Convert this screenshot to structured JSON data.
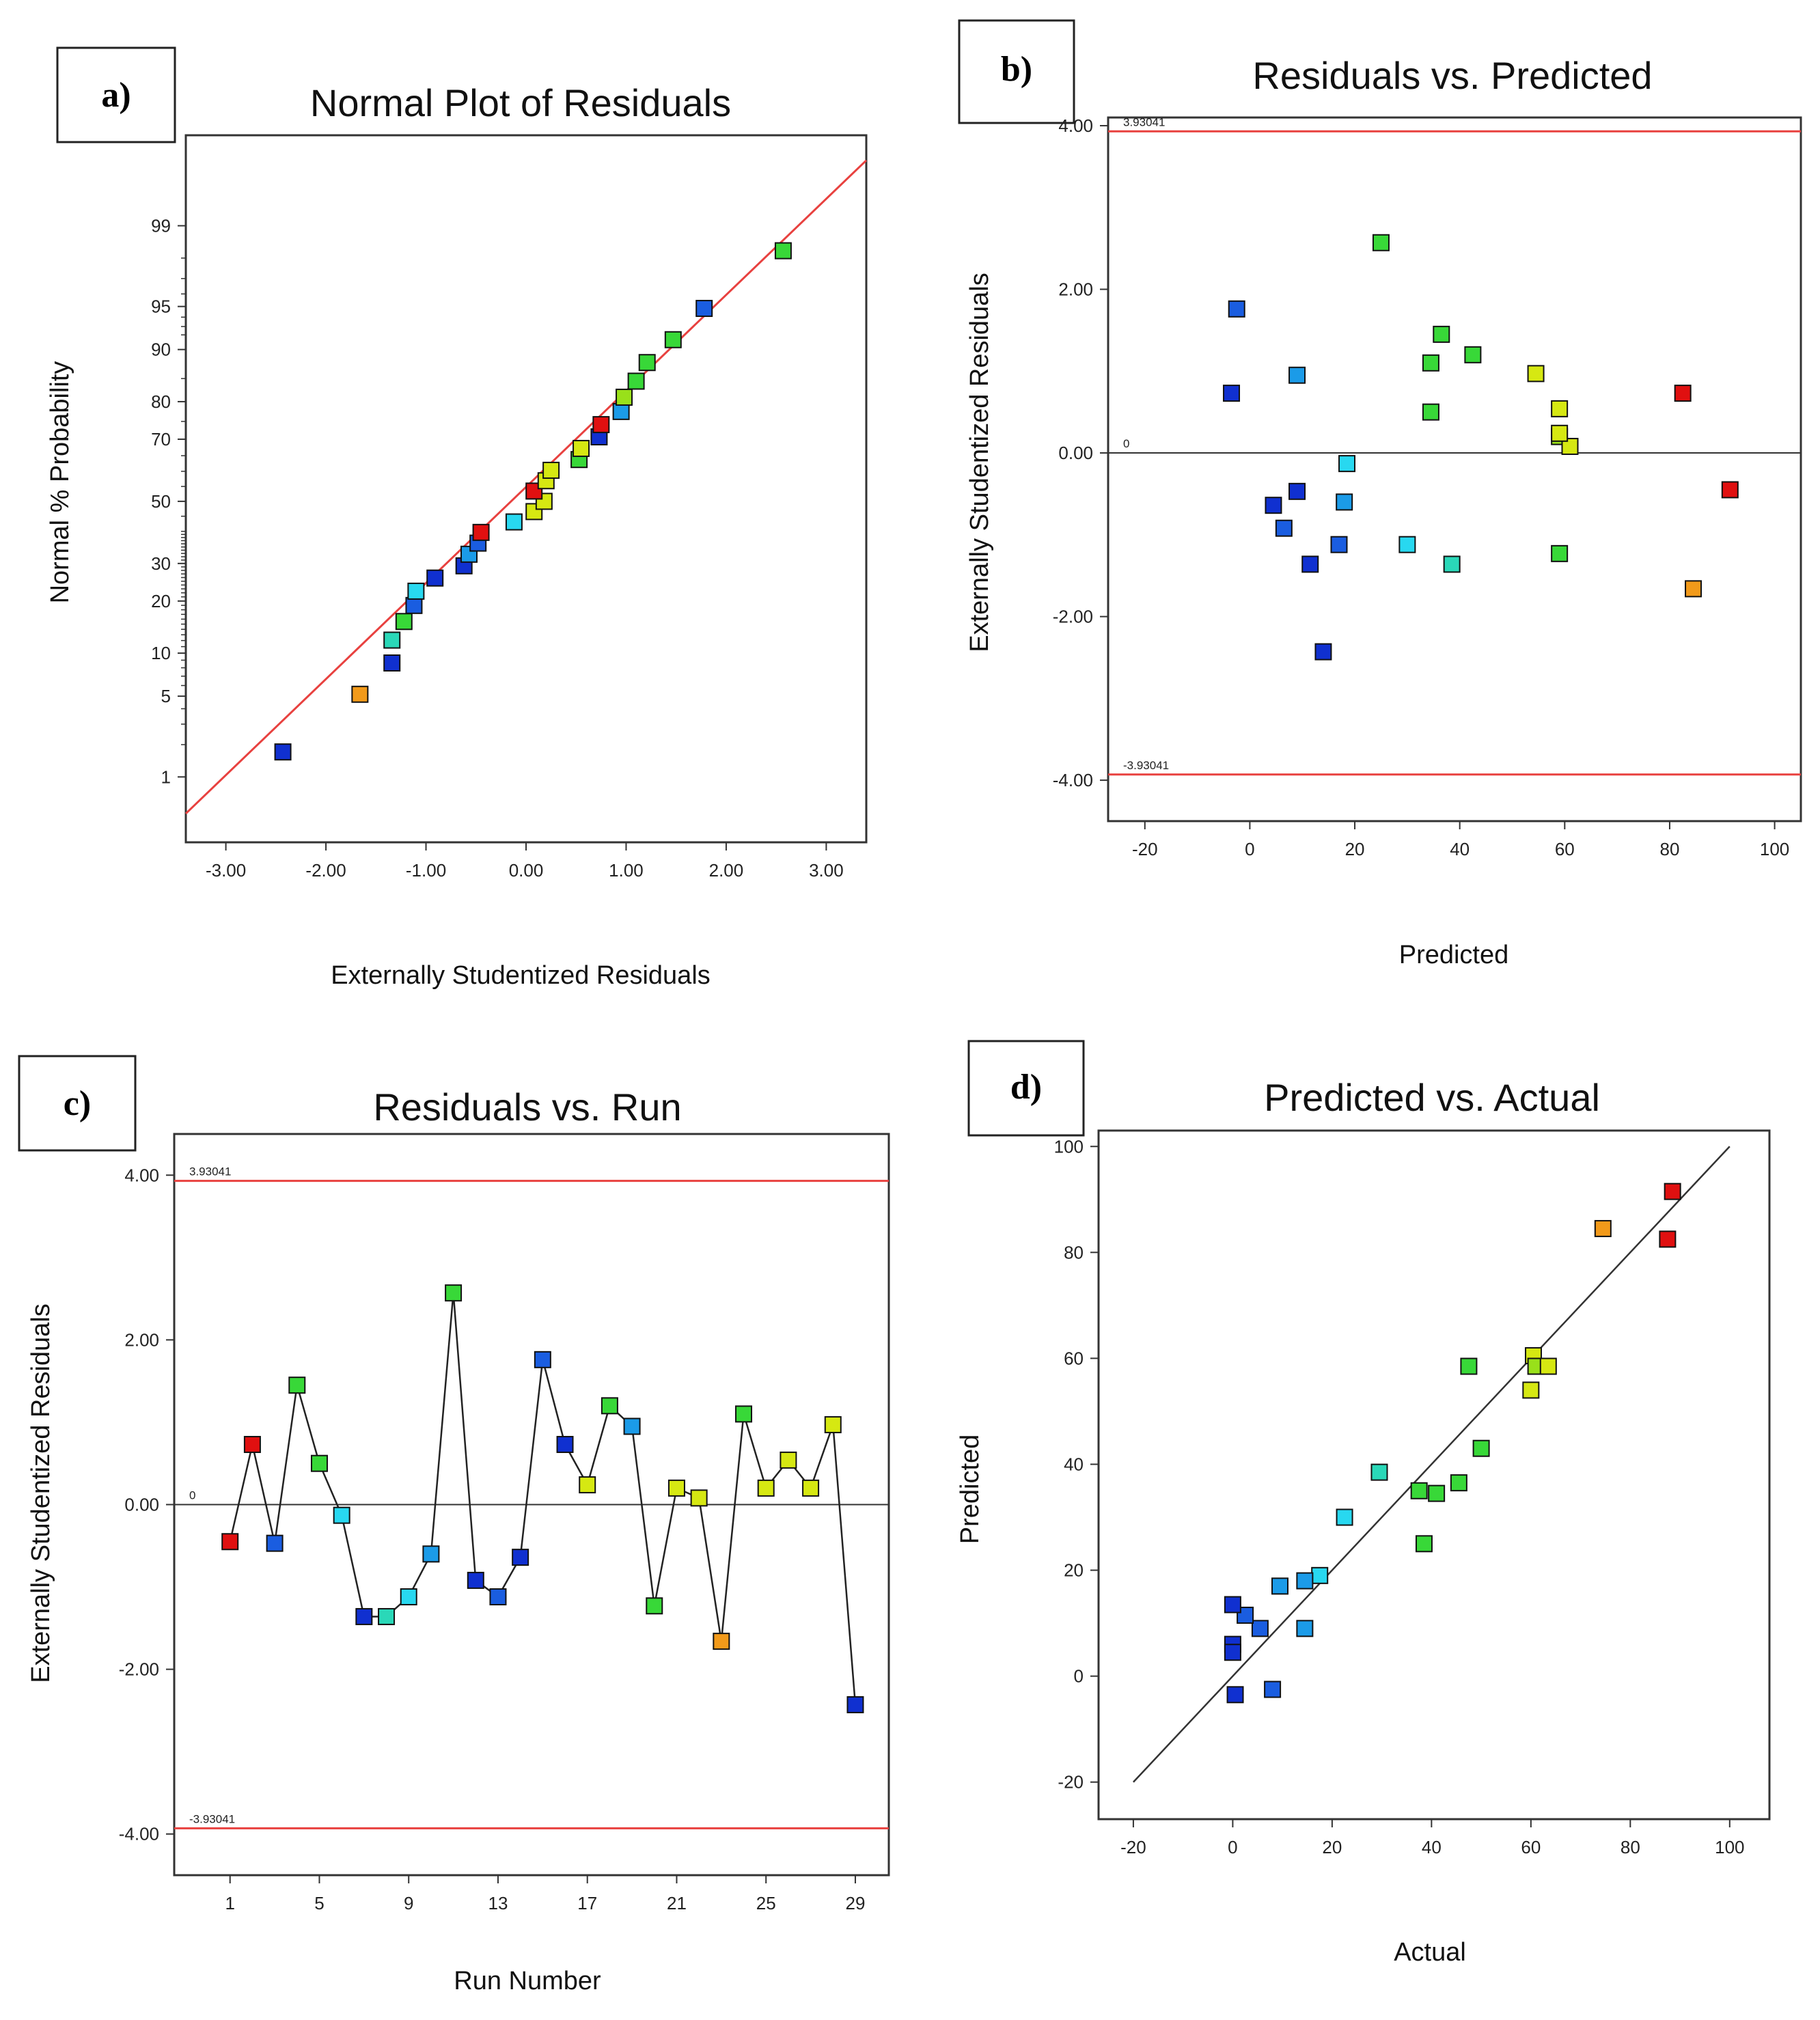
{
  "figure": {
    "colors": {
      "frame": "#333333",
      "ref_line": "#e8413f",
      "fit_line": "#333333",
      "point_red": "#e01010",
      "point_orange": "#f29a1a",
      "point_yellow": "#d6e812",
      "point_lightgreen": "#99e01a",
      "point_green": "#38d838",
      "point_aqua": "#2ad8b8",
      "point_cyan": "#28d8f0",
      "point_skyblue": "#1b9be8",
      "point_blue": "#1a5de0",
      "point_darkblue": "#1030d0",
      "run_line": "#222222"
    }
  },
  "chart_data": [
    {
      "panel": "a)",
      "type": "scatter",
      "title": "Normal Plot of Residuals",
      "xlabel": "Externally Studentized Residuals",
      "ylabel": "Normal % Probability",
      "xlim": [
        -3.4,
        3.4
      ],
      "ylim": [
        0.2,
        99.9
      ],
      "yscale": "probit",
      "xticks": [
        "-3.00",
        "-2.00",
        "-1.00",
        "0.00",
        "1.00",
        "2.00",
        "3.00"
      ],
      "yticks": [
        "1",
        "5",
        "10",
        "20",
        "30",
        "50",
        "70",
        "80",
        "90",
        "95",
        "99"
      ],
      "fit_line": {
        "x": [
          -3.4,
          3.4
        ],
        "y_percent": [
          0.42,
          99.8
        ]
      },
      "points": [
        {
          "x": -2.43,
          "y": 1.72,
          "c": "darkblue"
        },
        {
          "x": -1.66,
          "y": 5.17,
          "c": "orange"
        },
        {
          "x": -1.34,
          "y": 8.62,
          "c": "darkblue"
        },
        {
          "x": -1.34,
          "y": 12.07,
          "c": "aqua"
        },
        {
          "x": -1.22,
          "y": 15.52,
          "c": "green"
        },
        {
          "x": -1.12,
          "y": 18.97,
          "c": "blue"
        },
        {
          "x": -1.1,
          "y": 22.41,
          "c": "cyan"
        },
        {
          "x": -0.91,
          "y": 25.86,
          "c": "darkblue"
        },
        {
          "x": -0.62,
          "y": 29.31,
          "c": "darkblue"
        },
        {
          "x": -0.57,
          "y": 32.76,
          "c": "skyblue"
        },
        {
          "x": -0.48,
          "y": 36.21,
          "c": "blue"
        },
        {
          "x": -0.45,
          "y": 39.66,
          "c": "red"
        },
        {
          "x": -0.12,
          "y": 43.1,
          "c": "cyan"
        },
        {
          "x": 0.08,
          "y": 46.55,
          "c": "yellow"
        },
        {
          "x": 0.18,
          "y": 50.0,
          "c": "yellow"
        },
        {
          "x": 0.08,
          "y": 53.45,
          "c": "red"
        },
        {
          "x": 0.2,
          "y": 56.9,
          "c": "yellow"
        },
        {
          "x": 0.25,
          "y": 60.34,
          "c": "yellow"
        },
        {
          "x": 0.53,
          "y": 63.79,
          "c": "green"
        },
        {
          "x": 0.55,
          "y": 67.24,
          "c": "yellow"
        },
        {
          "x": 0.73,
          "y": 70.69,
          "c": "darkblue"
        },
        {
          "x": 0.75,
          "y": 74.14,
          "c": "red"
        },
        {
          "x": 0.95,
          "y": 77.59,
          "c": "skyblue"
        },
        {
          "x": 0.98,
          "y": 81.03,
          "c": "lightgreen"
        },
        {
          "x": 1.1,
          "y": 84.48,
          "c": "green"
        },
        {
          "x": 1.21,
          "y": 87.93,
          "c": "green"
        },
        {
          "x": 1.47,
          "y": 91.38,
          "c": "green"
        },
        {
          "x": 1.78,
          "y": 94.83,
          "c": "blue"
        },
        {
          "x": 2.57,
          "y": 98.28,
          "c": "green"
        }
      ]
    },
    {
      "panel": "b)",
      "type": "scatter",
      "title": "Residuals vs. Predicted",
      "xlabel": "Predicted",
      "ylabel": "Externally Studentized Residuals",
      "xlim": [
        -27,
        105
      ],
      "ylim": [
        -4.5,
        4.1
      ],
      "xticks": [
        "-20",
        "0",
        "20",
        "40",
        "60",
        "80",
        "100"
      ],
      "yticks": [
        "-4.00",
        "-2.00",
        "0.00",
        "2.00",
        "4.00"
      ],
      "ref_lines": [
        {
          "y": 3.93041,
          "label": "3.93041",
          "style": "red"
        },
        {
          "y": -3.93041,
          "label": "-3.93041",
          "style": "red"
        },
        {
          "y": 0,
          "label": "0",
          "style": "dark"
        }
      ],
      "points": [
        {
          "x": 91.5,
          "y": -0.45,
          "c": "red"
        },
        {
          "x": 82.5,
          "y": 0.73,
          "c": "red"
        },
        {
          "x": -3.5,
          "y": 0.73,
          "c": "darkblue"
        },
        {
          "x": 36.5,
          "y": 1.45,
          "c": "green"
        },
        {
          "x": 34.5,
          "y": 0.5,
          "c": "green"
        },
        {
          "x": 18.5,
          "y": -0.13,
          "c": "cyan"
        },
        {
          "x": 11.5,
          "y": -1.36,
          "c": "darkblue"
        },
        {
          "x": 38.5,
          "y": -1.36,
          "c": "aqua"
        },
        {
          "x": 30.0,
          "y": -1.12,
          "c": "cyan"
        },
        {
          "x": 18.0,
          "y": -0.6,
          "c": "skyblue"
        },
        {
          "x": 25.0,
          "y": 2.57,
          "c": "green"
        },
        {
          "x": 9.0,
          "y": -0.47,
          "c": "darkblue"
        },
        {
          "x": 17.0,
          "y": -1.12,
          "c": "blue"
        },
        {
          "x": 4.5,
          "y": -0.64,
          "c": "darkblue"
        },
        {
          "x": -2.5,
          "y": 1.76,
          "c": "blue"
        },
        {
          "x": 59.0,
          "y": 0.54,
          "c": "yellow"
        },
        {
          "x": 42.5,
          "y": 1.2,
          "c": "green"
        },
        {
          "x": 9.0,
          "y": 0.95,
          "c": "skyblue"
        },
        {
          "x": 59.0,
          "y": -1.23,
          "c": "green"
        },
        {
          "x": 59.0,
          "y": 0.2,
          "c": "lightgreen"
        },
        {
          "x": 34.5,
          "y": 1.1,
          "c": "green"
        },
        {
          "x": 61.0,
          "y": 0.08,
          "c": "yellow"
        },
        {
          "x": 59.0,
          "y": 0.24,
          "c": "yellow"
        },
        {
          "x": 54.5,
          "y": 0.97,
          "c": "yellow"
        },
        {
          "x": 84.5,
          "y": -1.66,
          "c": "orange"
        },
        {
          "x": 6.5,
          "y": -0.92,
          "c": "blue"
        },
        {
          "x": 14.0,
          "y": -2.43,
          "c": "darkblue"
        }
      ]
    },
    {
      "panel": "c)",
      "type": "line",
      "title": "Residuals vs. Run",
      "xlabel": "Run Number",
      "ylabel": "Externally Studentized Residuals",
      "xlim": [
        -1.5,
        30.5
      ],
      "ylim": [
        -4.5,
        4.5
      ],
      "xticks": [
        "1",
        "5",
        "9",
        "13",
        "17",
        "21",
        "25",
        "29"
      ],
      "yticks": [
        "-4.00",
        "-2.00",
        "0.00",
        "2.00",
        "4.00"
      ],
      "ref_lines": [
        {
          "y": 3.93041,
          "label": "3.93041",
          "style": "red"
        },
        {
          "y": -3.93041,
          "label": "-3.93041",
          "style": "red"
        },
        {
          "y": 0,
          "label": "0",
          "style": "dark"
        }
      ],
      "runs": [
        1,
        2,
        3,
        4,
        5,
        6,
        7,
        8,
        9,
        10,
        11,
        12,
        13,
        14,
        15,
        16,
        17,
        18,
        19,
        20,
        21,
        22,
        23,
        24,
        25,
        26,
        27,
        28,
        29
      ],
      "values": [
        -0.45,
        0.73,
        -0.47,
        1.45,
        0.5,
        -0.13,
        -1.36,
        -1.36,
        -1.12,
        -0.6,
        2.57,
        -0.92,
        -1.12,
        -0.64,
        1.76,
        0.73,
        0.24,
        1.2,
        0.95,
        -1.23,
        0.2,
        0.08,
        -1.66,
        1.1,
        0.2,
        0.54,
        0.2,
        0.97,
        -2.43
      ],
      "colors": [
        "red",
        "red",
        "blue",
        "green",
        "green",
        "cyan",
        "darkblue",
        "aqua",
        "cyan",
        "skyblue",
        "green",
        "darkblue",
        "blue",
        "darkblue",
        "blue",
        "darkblue",
        "yellow",
        "green",
        "skyblue",
        "green",
        "yellow",
        "yellow",
        "orange",
        "green",
        "yellow",
        "yellow",
        "yellow",
        "yellow",
        "darkblue"
      ]
    },
    {
      "panel": "d)",
      "type": "scatter",
      "title": "Predicted vs. Actual",
      "xlabel": "Actual",
      "ylabel": "Predicted",
      "xlim": [
        -27,
        108
      ],
      "ylim": [
        -27,
        103
      ],
      "xticks": [
        "-20",
        "0",
        "20",
        "40",
        "60",
        "80",
        "100"
      ],
      "yticks": [
        "-20",
        "0",
        "20",
        "40",
        "60",
        "80",
        "100"
      ],
      "fit_line": {
        "x": [
          -20,
          100
        ],
        "y": [
          -20,
          100
        ]
      },
      "points": [
        {
          "x": 88.5,
          "y": 91.5,
          "c": "red"
        },
        {
          "x": 87.5,
          "y": 82.5,
          "c": "red"
        },
        {
          "x": 74.5,
          "y": 84.5,
          "c": "orange"
        },
        {
          "x": 47.5,
          "y": 58.5,
          "c": "green"
        },
        {
          "x": 60.5,
          "y": 60.5,
          "c": "yellow"
        },
        {
          "x": 61.0,
          "y": 58.5,
          "c": "lightgreen"
        },
        {
          "x": 63.5,
          "y": 58.5,
          "c": "yellow"
        },
        {
          "x": 60.0,
          "y": 54.0,
          "c": "yellow"
        },
        {
          "x": 50.0,
          "y": 43.0,
          "c": "green"
        },
        {
          "x": 45.5,
          "y": 36.5,
          "c": "green"
        },
        {
          "x": 37.5,
          "y": 35.0,
          "c": "green"
        },
        {
          "x": 41.0,
          "y": 34.5,
          "c": "green"
        },
        {
          "x": 38.5,
          "y": 25.0,
          "c": "green"
        },
        {
          "x": 29.5,
          "y": 38.5,
          "c": "aqua"
        },
        {
          "x": 22.5,
          "y": 30.0,
          "c": "cyan"
        },
        {
          "x": 17.5,
          "y": 19.0,
          "c": "cyan"
        },
        {
          "x": 14.5,
          "y": 18.0,
          "c": "skyblue"
        },
        {
          "x": 9.5,
          "y": 17.0,
          "c": "skyblue"
        },
        {
          "x": 14.5,
          "y": 9.0,
          "c": "skyblue"
        },
        {
          "x": 5.5,
          "y": 9.0,
          "c": "blue"
        },
        {
          "x": 2.5,
          "y": 11.5,
          "c": "blue"
        },
        {
          "x": 0.0,
          "y": 13.5,
          "c": "darkblue"
        },
        {
          "x": 0.0,
          "y": 6.0,
          "c": "darkblue"
        },
        {
          "x": 0.0,
          "y": 4.5,
          "c": "darkblue"
        },
        {
          "x": 8.0,
          "y": -2.5,
          "c": "blue"
        },
        {
          "x": 0.5,
          "y": -3.5,
          "c": "darkblue"
        }
      ]
    }
  ]
}
